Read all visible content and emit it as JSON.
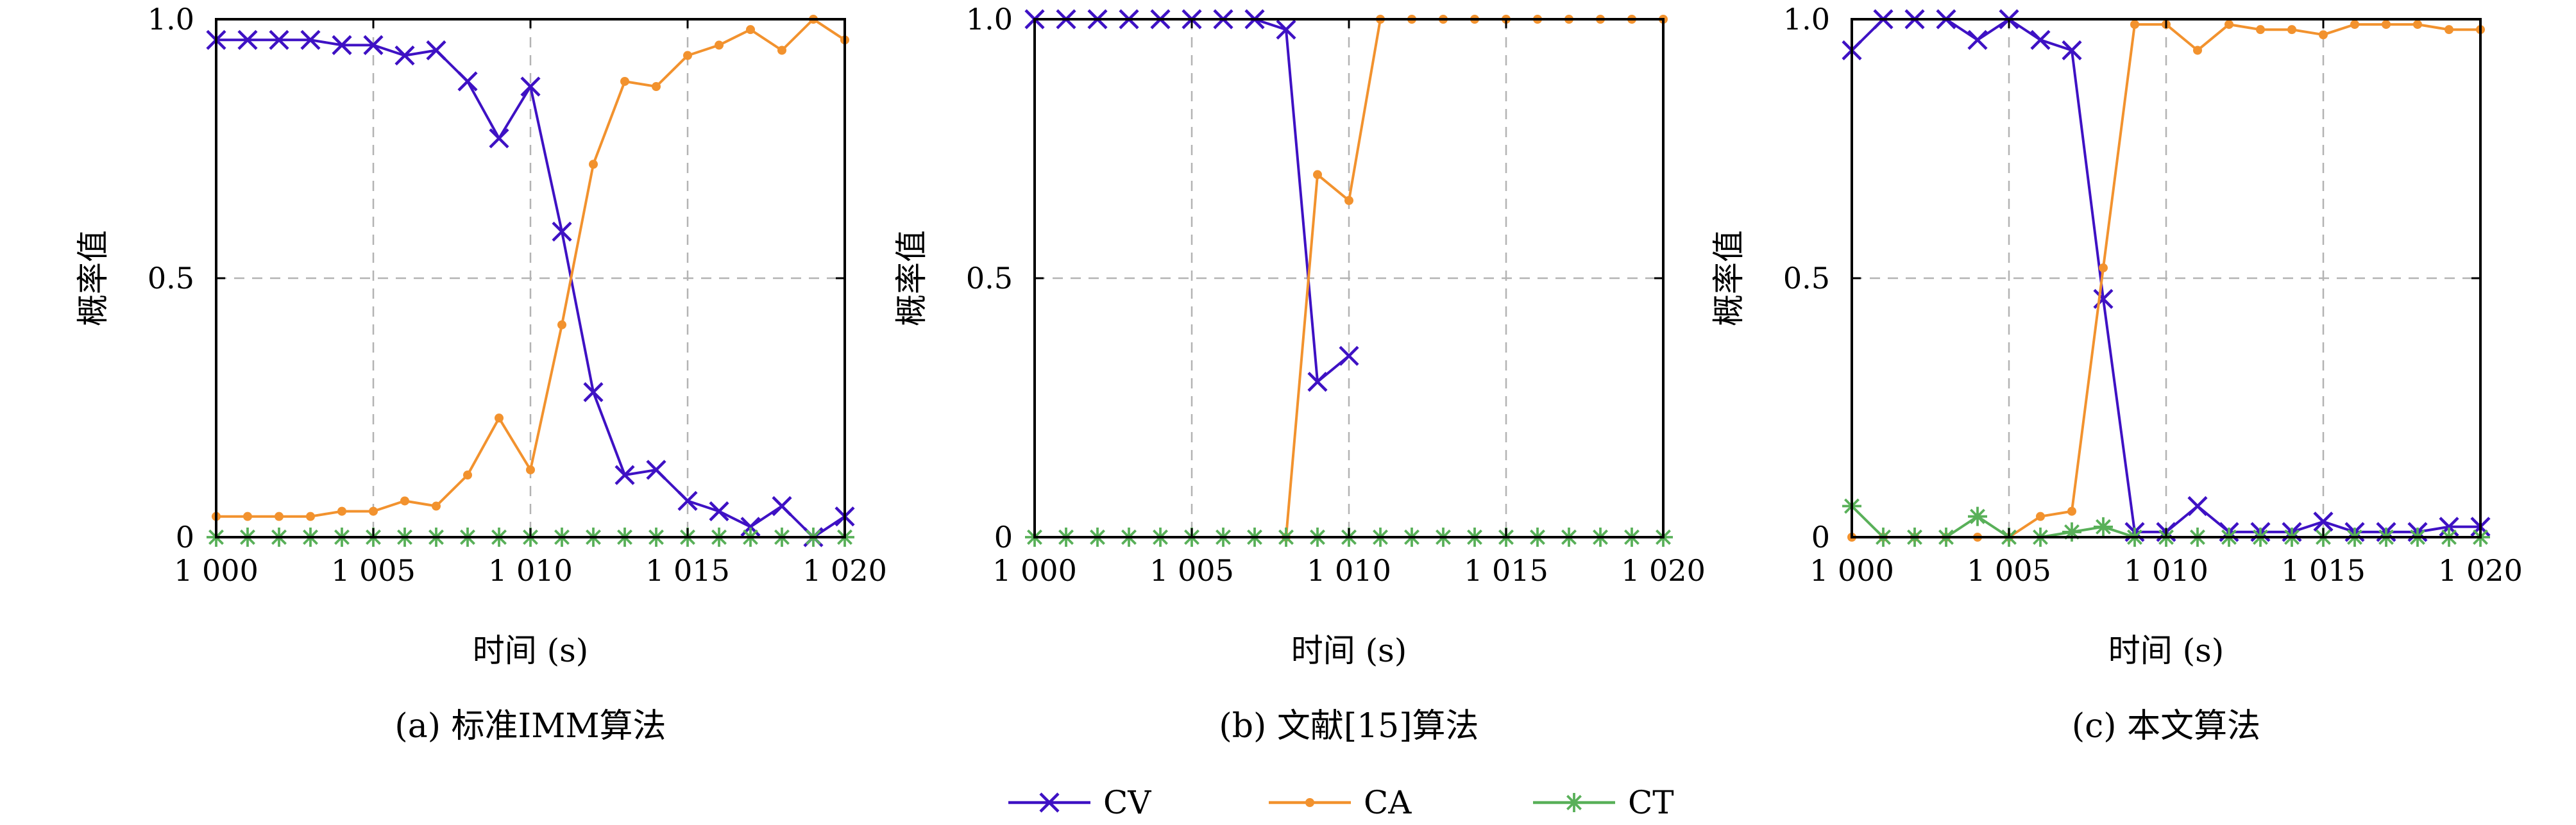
{
  "figure": {
    "legend": [
      {
        "name": "CV",
        "color": "#3e11c4",
        "marker": "x"
      },
      {
        "name": "CA",
        "color": "#f2922e",
        "marker": "dot"
      },
      {
        "name": "CT",
        "color": "#59b059",
        "marker": "star"
      }
    ]
  },
  "chart_data": [
    {
      "type": "line",
      "title": "(a) 标准IMM算法",
      "xlabel": "时间 (s)",
      "ylabel": "概率值",
      "xlim": [
        1000,
        1020
      ],
      "ylim": [
        0,
        1
      ],
      "xticks": [
        1000,
        1005,
        1010,
        1015,
        1020
      ],
      "xtick_labels": [
        "1 000",
        "1 005",
        "1 010",
        "1 015",
        "1 020"
      ],
      "yticks": [
        0,
        0.5,
        1
      ],
      "ytick_labels": [
        "0",
        "0.5",
        "1.0"
      ],
      "grid": true,
      "x": [
        1000,
        1001,
        1002,
        1003,
        1004,
        1005,
        1006,
        1007,
        1008,
        1009,
        1010,
        1011,
        1012,
        1013,
        1014,
        1015,
        1016,
        1017,
        1018,
        1019,
        1020
      ],
      "series": [
        {
          "name": "CV",
          "values": [
            0.96,
            0.96,
            0.96,
            0.96,
            0.95,
            0.95,
            0.93,
            0.94,
            0.88,
            0.77,
            0.87,
            0.59,
            0.28,
            0.12,
            0.13,
            0.07,
            0.05,
            0.02,
            0.06,
            0.0,
            0.04
          ]
        },
        {
          "name": "CA",
          "values": [
            0.04,
            0.04,
            0.04,
            0.04,
            0.05,
            0.05,
            0.07,
            0.06,
            0.12,
            0.23,
            0.13,
            0.41,
            0.72,
            0.88,
            0.87,
            0.93,
            0.95,
            0.98,
            0.94,
            1.0,
            0.96
          ]
        },
        {
          "name": "CT",
          "values": [
            0,
            0,
            0,
            0,
            0,
            0,
            0,
            0,
            0,
            0,
            0,
            0,
            0,
            0,
            0,
            0,
            0,
            0,
            0,
            0,
            0
          ]
        }
      ]
    },
    {
      "type": "line",
      "title": "(b) 文献[15]算法",
      "xlabel": "时间 (s)",
      "ylabel": "概率值",
      "xlim": [
        1000,
        1020
      ],
      "ylim": [
        0,
        1
      ],
      "xticks": [
        1000,
        1005,
        1010,
        1015,
        1020
      ],
      "xtick_labels": [
        "1 000",
        "1 005",
        "1 010",
        "1 015",
        "1 020"
      ],
      "yticks": [
        0,
        0.5,
        1
      ],
      "ytick_labels": [
        "0",
        "0.5",
        "1.0"
      ],
      "grid": true,
      "x": [
        1000,
        1001,
        1002,
        1003,
        1004,
        1005,
        1006,
        1007,
        1008,
        1009,
        1010,
        1011,
        1012,
        1013,
        1014,
        1015,
        1016,
        1017,
        1018,
        1019,
        1020
      ],
      "series": [
        {
          "name": "CV",
          "values": [
            1,
            1,
            1,
            1,
            1,
            1,
            1,
            1,
            0.98,
            0.3,
            0.35,
            null,
            null,
            null,
            null,
            null,
            null,
            null,
            null,
            null,
            null
          ]
        },
        {
          "name": "CA",
          "values": [
            null,
            null,
            null,
            null,
            null,
            null,
            null,
            null,
            0.0,
            0.7,
            0.65,
            1,
            1,
            1,
            1,
            1,
            1,
            1,
            1,
            1,
            1
          ]
        },
        {
          "name": "CT",
          "values": [
            0,
            0,
            0,
            0,
            0,
            0,
            0,
            0,
            0,
            0,
            0,
            0,
            0,
            0,
            0,
            0,
            0,
            0,
            0,
            0,
            0
          ]
        }
      ]
    },
    {
      "type": "line",
      "title": "(c) 本文算法",
      "xlabel": "时间 (s)",
      "ylabel": "概率值",
      "xlim": [
        1000,
        1020
      ],
      "ylim": [
        0,
        1
      ],
      "xticks": [
        1000,
        1005,
        1010,
        1015,
        1020
      ],
      "xtick_labels": [
        "1 000",
        "1 005",
        "1 010",
        "1 015",
        "1 020"
      ],
      "yticks": [
        0,
        0.5,
        1
      ],
      "ytick_labels": [
        "0",
        "0.5",
        "1.0"
      ],
      "grid": true,
      "x": [
        1000,
        1001,
        1002,
        1003,
        1004,
        1005,
        1006,
        1007,
        1008,
        1009,
        1010,
        1011,
        1012,
        1013,
        1014,
        1015,
        1016,
        1017,
        1018,
        1019,
        1020
      ],
      "series": [
        {
          "name": "CV",
          "values": [
            0.94,
            1.0,
            1.0,
            1.0,
            0.96,
            1.0,
            0.96,
            0.94,
            0.46,
            0.01,
            0.01,
            0.06,
            0.01,
            0.01,
            0.01,
            0.03,
            0.01,
            0.01,
            0.01,
            0.02,
            0.02
          ]
        },
        {
          "name": "CA",
          "values": [
            0.0,
            0.0,
            0.0,
            0.0,
            0.0,
            0.0,
            0.04,
            0.05,
            0.52,
            0.99,
            0.99,
            0.94,
            0.99,
            0.98,
            0.98,
            0.97,
            0.99,
            0.99,
            0.99,
            0.98,
            0.98
          ]
        },
        {
          "name": "CT",
          "values": [
            0.06,
            0.0,
            0.0,
            0.0,
            0.04,
            0.0,
            0.0,
            0.01,
            0.02,
            0.0,
            0.0,
            0.0,
            0.0,
            0.0,
            0.0,
            0.0,
            0.0,
            0.0,
            0.0,
            0.0,
            0.0
          ]
        }
      ]
    }
  ]
}
